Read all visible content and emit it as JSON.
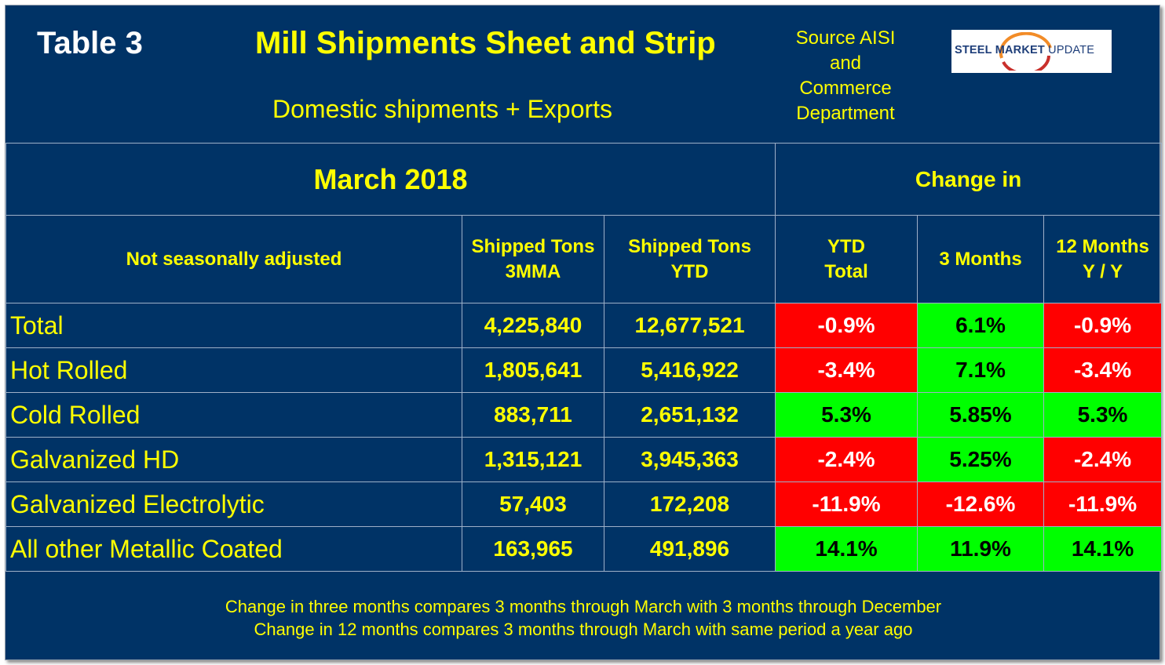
{
  "header": {
    "table_label": "Table 3",
    "title": "Mill Shipments Sheet and Strip",
    "subtitle": "Domestic shipments + Exports",
    "source_lines": [
      "Source AISI",
      "and",
      "Commerce",
      "Department"
    ],
    "logo_steel": "STEEL",
    "logo_market": " MARKET",
    "logo_update": " UPDATE"
  },
  "chart_data": {
    "type": "table",
    "title": "Mill Shipments Sheet and Strip",
    "period": "March 2018",
    "group_header": "Change in",
    "columns": [
      "Not seasonally adjusted",
      "Shipped Tons\n3MMA",
      "Shipped Tons\nYTD",
      "YTD\nTotal",
      "3 Months",
      "12 Months\nY / Y"
    ],
    "rows": [
      {
        "label": "Total",
        "tons_3mma": "4,225,840",
        "tons_ytd": "12,677,521",
        "chg_ytd": "-0.9%",
        "chg_3m": "6.1%",
        "chg_12m": "-0.9%"
      },
      {
        "label": "Hot Rolled",
        "tons_3mma": "1,805,641",
        "tons_ytd": "5,416,922",
        "chg_ytd": "-3.4%",
        "chg_3m": "7.1%",
        "chg_12m": "-3.4%"
      },
      {
        "label": "Cold Rolled",
        "tons_3mma": "883,711",
        "tons_ytd": "2,651,132",
        "chg_ytd": "5.3%",
        "chg_3m": "5.85%",
        "chg_12m": "5.3%"
      },
      {
        "label": "Galvanized HD",
        "tons_3mma": "1,315,121",
        "tons_ytd": "3,945,363",
        "chg_ytd": "-2.4%",
        "chg_3m": "5.25%",
        "chg_12m": "-2.4%"
      },
      {
        "label": "Galvanized Electrolytic",
        "tons_3mma": "57,403",
        "tons_ytd": "172,208",
        "chg_ytd": "-11.9%",
        "chg_3m": "-12.6%",
        "chg_12m": "-11.9%"
      },
      {
        "label": "All other Metallic Coated",
        "tons_3mma": "163,965",
        "tons_ytd": "491,896",
        "chg_ytd": "14.1%",
        "chg_3m": "11.9%",
        "chg_12m": "14.1%"
      }
    ],
    "colors": {
      "negative": "#ff0000",
      "positive": "#00ff00"
    }
  },
  "notes": [
    "Change in three months compares 3 months through March with 3 months through December",
    "Change in 12 months compares 3 months through March with same period a year ago"
  ],
  "colors": {
    "background": "#003366",
    "text": "#ffff00"
  }
}
